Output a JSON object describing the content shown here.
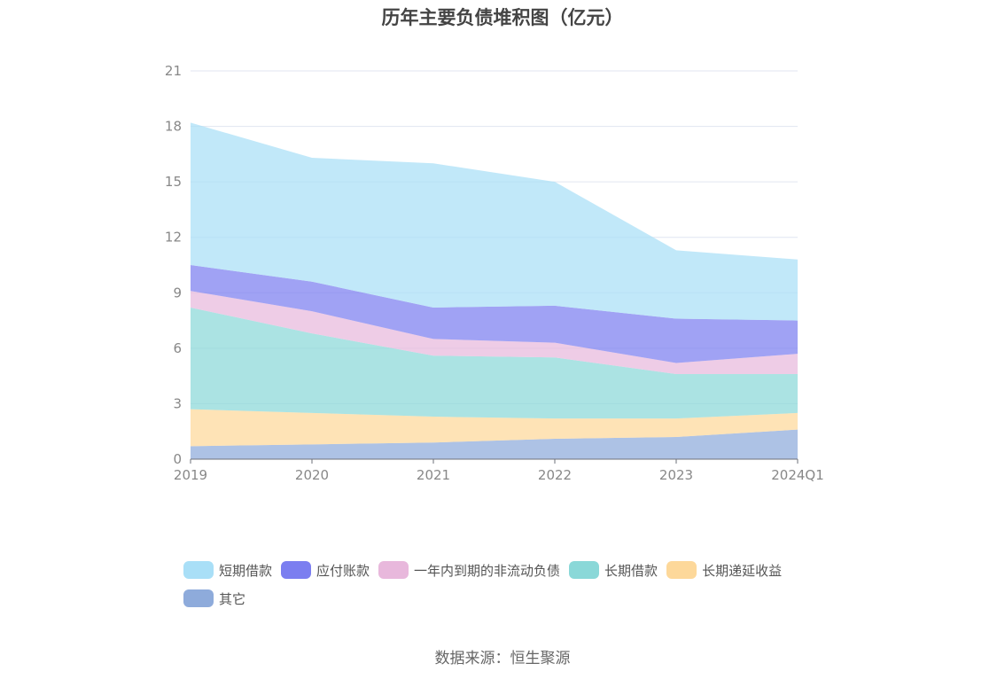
{
  "chart_data": {
    "type": "area",
    "stacked": true,
    "title": "历年主要负债堆积图（亿元）",
    "categories": [
      "2019",
      "2020",
      "2021",
      "2022",
      "2023",
      "2024Q1"
    ],
    "y_ticks": [
      "0",
      "3",
      "6",
      "9",
      "12",
      "15",
      "18",
      "21"
    ],
    "ylim": [
      0,
      21
    ],
    "grid": true,
    "legend_position": "bottom",
    "series": [
      {
        "name": "其它",
        "color": "#8eabdb",
        "values": [
          0.7,
          0.8,
          0.9,
          1.1,
          1.2,
          1.6
        ]
      },
      {
        "name": "长期递延收益",
        "color": "#fdd89a",
        "values": [
          2.0,
          1.7,
          1.4,
          1.1,
          1.0,
          0.9
        ]
      },
      {
        "name": "长期借款",
        "color": "#8ad8d8",
        "values": [
          5.5,
          4.3,
          3.3,
          3.3,
          2.4,
          2.1
        ]
      },
      {
        "name": "一年内到期的非流动负债",
        "color": "#e8b8dc",
        "values": [
          0.9,
          1.2,
          0.9,
          0.8,
          0.6,
          1.1
        ]
      },
      {
        "name": "应付账款",
        "color": "#7b7ef0",
        "values": [
          1.4,
          1.6,
          1.7,
          2.0,
          2.4,
          1.8
        ]
      },
      {
        "name": "短期借款",
        "color": "#a9dff7",
        "values": [
          7.7,
          6.7,
          7.8,
          6.7,
          3.7,
          3.3
        ]
      }
    ]
  },
  "legend": [
    {
      "label": "短期借款",
      "color": "#a9dff7"
    },
    {
      "label": "应付账款",
      "color": "#7b7ef0"
    },
    {
      "label": "一年内到期的非流动负债",
      "color": "#e8b8dc"
    },
    {
      "label": "长期借款",
      "color": "#8ad8d8"
    },
    {
      "label": "长期递延收益",
      "color": "#fdd89a"
    },
    {
      "label": "其它",
      "color": "#8eabdb"
    }
  ],
  "source": "数据来源：恒生聚源"
}
